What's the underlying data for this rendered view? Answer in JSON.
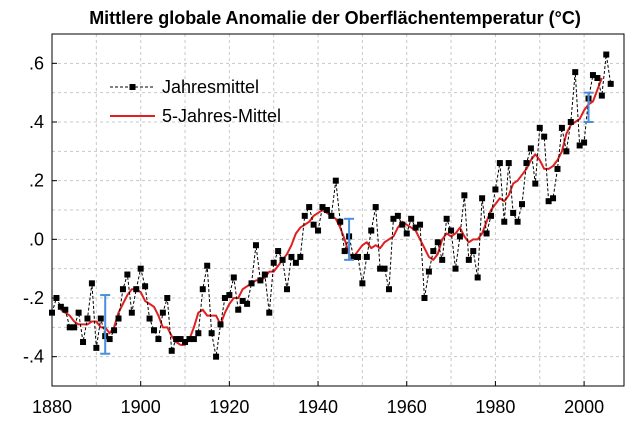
{
  "chart_data": {
    "type": "line",
    "title": "Mittlere globale Anomalie der Oberflächentemperatur (°C)",
    "xlabel": "",
    "ylabel": "",
    "xlim": [
      1880,
      2009
    ],
    "ylim": [
      -0.5,
      0.7
    ],
    "grid": true,
    "legend_position": "top-left",
    "x_ticks": [
      1880,
      1900,
      1920,
      1940,
      1960,
      1980,
      2000
    ],
    "x_tick_labels": [
      "1880",
      "1900",
      "1920",
      "1940",
      "1960",
      "1980",
      "2000"
    ],
    "y_ticks": [
      -0.4,
      -0.2,
      0.0,
      0.2,
      0.4,
      0.6
    ],
    "y_tick_labels": [
      "-.4",
      "-.2",
      ".0",
      ".2",
      ".4",
      ".6"
    ],
    "x_minor_ticks": [
      1890,
      1910,
      1930,
      1950,
      1970,
      1990
    ],
    "y_minor_ticks": [
      -0.3,
      -0.1,
      0.1,
      0.3,
      0.5
    ],
    "series": [
      {
        "name": "Jahresmittel",
        "color": "#000000",
        "style": "dashed-line-square-markers",
        "x": [
          1880,
          1881,
          1882,
          1883,
          1884,
          1885,
          1886,
          1887,
          1888,
          1889,
          1890,
          1891,
          1892,
          1893,
          1894,
          1895,
          1896,
          1897,
          1898,
          1899,
          1900,
          1901,
          1902,
          1903,
          1904,
          1905,
          1906,
          1907,
          1908,
          1909,
          1910,
          1911,
          1912,
          1913,
          1914,
          1915,
          1916,
          1917,
          1918,
          1919,
          1920,
          1921,
          1922,
          1923,
          1924,
          1925,
          1926,
          1927,
          1928,
          1929,
          1930,
          1931,
          1932,
          1933,
          1934,
          1935,
          1936,
          1937,
          1938,
          1939,
          1940,
          1941,
          1942,
          1943,
          1944,
          1945,
          1946,
          1947,
          1948,
          1949,
          1950,
          1951,
          1952,
          1953,
          1954,
          1955,
          1956,
          1957,
          1958,
          1959,
          1960,
          1961,
          1962,
          1963,
          1964,
          1965,
          1966,
          1967,
          1968,
          1969,
          1970,
          1971,
          1972,
          1973,
          1974,
          1975,
          1976,
          1977,
          1978,
          1979,
          1980,
          1981,
          1982,
          1983,
          1984,
          1985,
          1986,
          1987,
          1988,
          1989,
          1990,
          1991,
          1992,
          1993,
          1994,
          1995,
          1996,
          1997,
          1998,
          1999,
          2000,
          2001,
          2002,
          2003,
          2004,
          2005,
          2006
        ],
        "values": [
          -0.25,
          -0.2,
          -0.23,
          -0.24,
          -0.3,
          -0.3,
          -0.25,
          -0.35,
          -0.27,
          -0.15,
          -0.37,
          -0.27,
          -0.33,
          -0.34,
          -0.31,
          -0.27,
          -0.17,
          -0.12,
          -0.25,
          -0.17,
          -0.1,
          -0.16,
          -0.27,
          -0.31,
          -0.34,
          -0.25,
          -0.2,
          -0.38,
          -0.34,
          -0.34,
          -0.35,
          -0.34,
          -0.34,
          -0.32,
          -0.17,
          -0.09,
          -0.32,
          -0.4,
          -0.29,
          -0.2,
          -0.19,
          -0.13,
          -0.24,
          -0.21,
          -0.22,
          -0.15,
          -0.02,
          -0.14,
          -0.12,
          -0.25,
          -0.08,
          -0.04,
          -0.07,
          -0.17,
          -0.06,
          -0.08,
          -0.06,
          0.08,
          0.11,
          0.05,
          0.03,
          0.11,
          0.1,
          0.08,
          0.2,
          0.06,
          -0.04,
          0.01,
          -0.06,
          -0.06,
          -0.15,
          -0.06,
          0.03,
          0.11,
          -0.1,
          -0.1,
          -0.17,
          0.07,
          0.08,
          0.05,
          0.02,
          0.07,
          0.04,
          0.05,
          -0.2,
          -0.11,
          -0.04,
          -0.01,
          -0.07,
          0.07,
          0.03,
          -0.1,
          0.01,
          0.15,
          -0.07,
          -0.04,
          -0.13,
          0.14,
          0.02,
          0.08,
          0.17,
          0.26,
          0.06,
          0.26,
          0.09,
          0.06,
          0.12,
          0.26,
          0.31,
          0.19,
          0.38,
          0.35,
          0.13,
          0.14,
          0.24,
          0.38,
          0.3,
          0.4,
          0.57,
          0.32,
          0.33,
          0.48,
          0.56,
          0.55,
          0.49,
          0.63,
          0.53
        ]
      },
      {
        "name": "5-Jahres-Mittel",
        "color": "#e02020",
        "style": "solid-line",
        "x": [
          1882,
          1883,
          1884,
          1885,
          1886,
          1887,
          1888,
          1889,
          1890,
          1891,
          1892,
          1893,
          1894,
          1895,
          1896,
          1897,
          1898,
          1899,
          1900,
          1901,
          1902,
          1903,
          1904,
          1905,
          1906,
          1907,
          1908,
          1909,
          1910,
          1911,
          1912,
          1913,
          1914,
          1915,
          1916,
          1917,
          1918,
          1919,
          1920,
          1921,
          1922,
          1923,
          1924,
          1925,
          1926,
          1927,
          1928,
          1929,
          1930,
          1931,
          1932,
          1933,
          1934,
          1935,
          1936,
          1937,
          1938,
          1939,
          1940,
          1941,
          1942,
          1943,
          1944,
          1945,
          1946,
          1947,
          1948,
          1949,
          1950,
          1951,
          1952,
          1953,
          1954,
          1955,
          1956,
          1957,
          1958,
          1959,
          1960,
          1961,
          1962,
          1963,
          1964,
          1965,
          1966,
          1967,
          1968,
          1969,
          1970,
          1971,
          1972,
          1973,
          1974,
          1975,
          1976,
          1977,
          1978,
          1979,
          1980,
          1981,
          1982,
          1983,
          1984,
          1985,
          1986,
          1987,
          1988,
          1989,
          1990,
          1991,
          1992,
          1993,
          1994,
          1995,
          1996,
          1997,
          1998,
          1999,
          2000,
          2001,
          2002,
          2003,
          2004
        ],
        "values": [
          -0.24,
          -0.25,
          -0.26,
          -0.28,
          -0.29,
          -0.29,
          -0.29,
          -0.28,
          -0.28,
          -0.3,
          -0.3,
          -0.32,
          -0.3,
          -0.25,
          -0.22,
          -0.19,
          -0.17,
          -0.17,
          -0.18,
          -0.21,
          -0.22,
          -0.23,
          -0.26,
          -0.3,
          -0.3,
          -0.33,
          -0.35,
          -0.36,
          -0.36,
          -0.34,
          -0.3,
          -0.25,
          -0.24,
          -0.26,
          -0.26,
          -0.26,
          -0.29,
          -0.25,
          -0.22,
          -0.2,
          -0.2,
          -0.17,
          -0.16,
          -0.15,
          -0.14,
          -0.14,
          -0.13,
          -0.11,
          -0.11,
          -0.09,
          -0.07,
          -0.05,
          -0.02,
          0.02,
          0.04,
          0.05,
          0.06,
          0.08,
          0.09,
          0.1,
          0.09,
          0.08,
          0.07,
          0.04,
          0.0,
          -0.05,
          -0.06,
          -0.04,
          -0.02,
          -0.01,
          -0.03,
          -0.02,
          -0.03,
          -0.01,
          0.0,
          0.01,
          0.04,
          0.06,
          0.05,
          0.04,
          0.03,
          0.0,
          -0.03,
          -0.06,
          -0.07,
          -0.05,
          0.0,
          0.02,
          0.01,
          0.02,
          0.04,
          0.01,
          -0.01,
          0.0,
          0.0,
          0.02,
          0.06,
          0.1,
          0.12,
          0.14,
          0.13,
          0.15,
          0.19,
          0.2,
          0.22,
          0.24,
          0.27,
          0.29,
          0.27,
          0.24,
          0.24,
          0.25,
          0.27,
          0.3,
          0.36,
          0.39,
          0.4,
          0.41,
          0.44,
          0.46,
          0.47,
          0.51,
          0.55
        ]
      }
    ],
    "error_bars": [
      {
        "x": 1892,
        "y": -0.29,
        "low": -0.39,
        "high": -0.19,
        "color": "#4a8fdc"
      },
      {
        "x": 1947,
        "y": 0.0,
        "low": -0.07,
        "high": 0.07,
        "color": "#4a8fdc"
      },
      {
        "x": 2001,
        "y": 0.45,
        "low": 0.4,
        "high": 0.5,
        "color": "#4a8fdc"
      }
    ]
  }
}
